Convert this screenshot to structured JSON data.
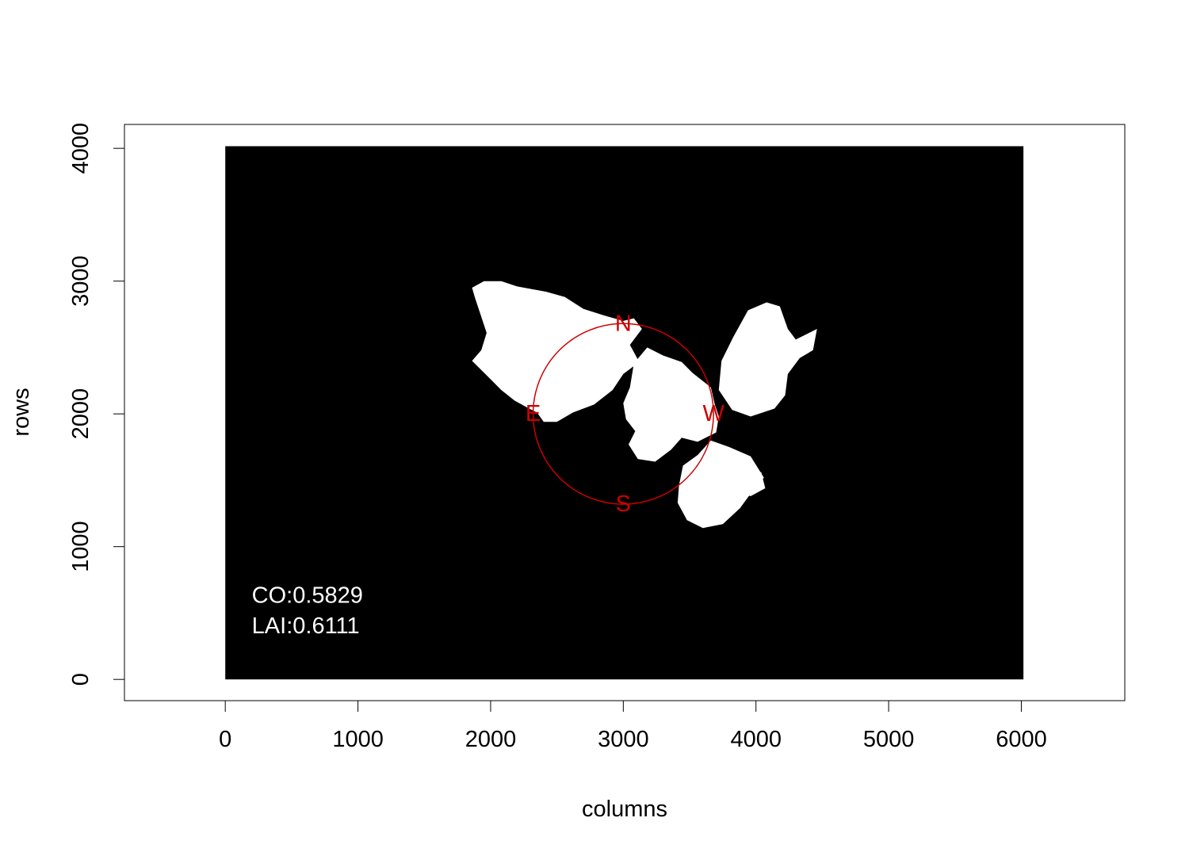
{
  "chart_data": {
    "type": "heatmap",
    "title": "",
    "xlabel": "columns",
    "ylabel": "rows",
    "xlim": [
      -760,
      6780
    ],
    "ylim": [
      -160,
      4180
    ],
    "x_ticks": [
      0,
      1000,
      2000,
      3000,
      4000,
      5000,
      6000
    ],
    "y_ticks": [
      0,
      1000,
      2000,
      3000,
      4000
    ],
    "image_extent": {
      "x": [
        0,
        6016
      ],
      "y": [
        0,
        4016
      ]
    },
    "background_color": "#000000",
    "foreground_color": "#ffffff",
    "grid": false,
    "circle": {
      "center": [
        3000,
        2000
      ],
      "radius": 680,
      "color": "#cc0000",
      "labels": [
        {
          "text": "N",
          "x": 3000,
          "y": 2680
        },
        {
          "text": "E",
          "x": 2320,
          "y": 2000
        },
        {
          "text": "S",
          "x": 3000,
          "y": 1320
        },
        {
          "text": "W",
          "x": 3680,
          "y": 2000
        }
      ]
    },
    "sky_regions": [
      [
        [
          1860,
          2950
        ],
        [
          1950,
          3000
        ],
        [
          2080,
          3000
        ],
        [
          2200,
          2960
        ],
        [
          2420,
          2920
        ],
        [
          2560,
          2880
        ],
        [
          2700,
          2790
        ],
        [
          2860,
          2740
        ],
        [
          3000,
          2700
        ],
        [
          3080,
          2720
        ],
        [
          3140,
          2640
        ],
        [
          3050,
          2520
        ],
        [
          3120,
          2390
        ],
        [
          3000,
          2300
        ],
        [
          2920,
          2180
        ],
        [
          2780,
          2070
        ],
        [
          2620,
          2010
        ],
        [
          2500,
          1940
        ],
        [
          2400,
          1940
        ],
        [
          2350,
          2010
        ],
        [
          2290,
          2040
        ],
        [
          2180,
          2100
        ],
        [
          2080,
          2180
        ],
        [
          1990,
          2270
        ],
        [
          1860,
          2400
        ],
        [
          1930,
          2480
        ],
        [
          1970,
          2610
        ],
        [
          1920,
          2760
        ],
        [
          1880,
          2880
        ]
      ],
      [
        [
          3080,
          2380
        ],
        [
          3180,
          2500
        ],
        [
          3300,
          2440
        ],
        [
          3440,
          2390
        ],
        [
          3520,
          2310
        ],
        [
          3660,
          2200
        ],
        [
          3690,
          2070
        ],
        [
          3720,
          1980
        ],
        [
          3700,
          1860
        ],
        [
          3560,
          1790
        ],
        [
          3440,
          1820
        ],
        [
          3360,
          1730
        ],
        [
          3240,
          1640
        ],
        [
          3110,
          1660
        ],
        [
          3040,
          1770
        ],
        [
          3090,
          1870
        ],
        [
          3020,
          1960
        ],
        [
          3000,
          2080
        ],
        [
          3050,
          2200
        ]
      ],
      [
        [
          3450,
          1610
        ],
        [
          3560,
          1690
        ],
        [
          3660,
          1800
        ],
        [
          3800,
          1750
        ],
        [
          3960,
          1680
        ],
        [
          4060,
          1520
        ],
        [
          3960,
          1400
        ],
        [
          3880,
          1290
        ],
        [
          3750,
          1170
        ],
        [
          3600,
          1140
        ],
        [
          3480,
          1200
        ],
        [
          3410,
          1330
        ],
        [
          3420,
          1460
        ]
      ],
      [
        [
          3740,
          2400
        ],
        [
          3830,
          2580
        ],
        [
          3940,
          2780
        ],
        [
          4080,
          2840
        ],
        [
          4180,
          2810
        ],
        [
          4240,
          2640
        ],
        [
          4300,
          2560
        ],
        [
          4460,
          2640
        ],
        [
          4430,
          2480
        ],
        [
          4330,
          2420
        ],
        [
          4240,
          2300
        ],
        [
          4220,
          2140
        ],
        [
          4140,
          2040
        ],
        [
          3960,
          1980
        ],
        [
          3820,
          2030
        ],
        [
          3720,
          2180
        ]
      ],
      [
        [
          3700,
          1720
        ],
        [
          3780,
          1640
        ],
        [
          3900,
          1590
        ],
        [
          4040,
          1560
        ],
        [
          4070,
          1440
        ],
        [
          3960,
          1380
        ],
        [
          3820,
          1430
        ],
        [
          3700,
          1560
        ]
      ]
    ],
    "annotations": [
      {
        "text": "CO:0.5829",
        "x": 200,
        "y": 630
      },
      {
        "text": "LAI:0.6111",
        "x": 200,
        "y": 400
      }
    ]
  }
}
